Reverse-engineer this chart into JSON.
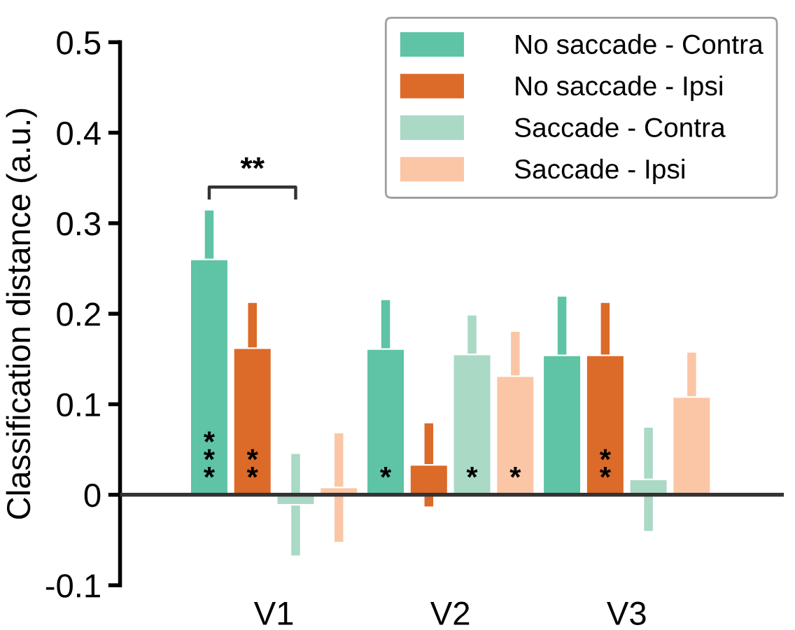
{
  "chart_data": {
    "type": "bar",
    "ylabel": "Classification distance (a.u.)",
    "categories": [
      "V1",
      "V2",
      "V3"
    ],
    "series": [
      {
        "name": "No saccade - Contra",
        "color": "#5fc3a6",
        "values": [
          0.26,
          0.161,
          0.154
        ],
        "errors": [
          0.054,
          0.054,
          0.065
        ],
        "value_labels": [
          "*\n*\n*",
          "*",
          null
        ]
      },
      {
        "name": "No saccade - Ipsi",
        "color": "#dc6a28",
        "values": [
          0.162,
          0.033,
          0.154
        ],
        "errors": [
          0.05,
          0.046,
          0.058
        ],
        "value_labels": [
          "*\n*",
          null,
          "*\n*"
        ]
      },
      {
        "name": "Saccade - Contra",
        "color": "#aad9c5",
        "values": [
          -0.011,
          0.155,
          0.017
        ],
        "errors": [
          0.056,
          0.043,
          0.057
        ],
        "value_labels": [
          null,
          "*",
          null
        ]
      },
      {
        "name": "Saccade - Ipsi",
        "color": "#fbc6a5",
        "values": [
          0.008,
          0.131,
          0.108
        ],
        "errors": [
          0.06,
          0.049,
          0.049
        ],
        "value_labels": [
          null,
          "*",
          null
        ]
      }
    ],
    "annotations": [
      "**"
    ],
    "ylim": [
      -0.1,
      0.5
    ],
    "yticks": [
      -0.1,
      0,
      0.1,
      0.2,
      0.3,
      0.4,
      0.5
    ],
    "legend": "top right"
  }
}
